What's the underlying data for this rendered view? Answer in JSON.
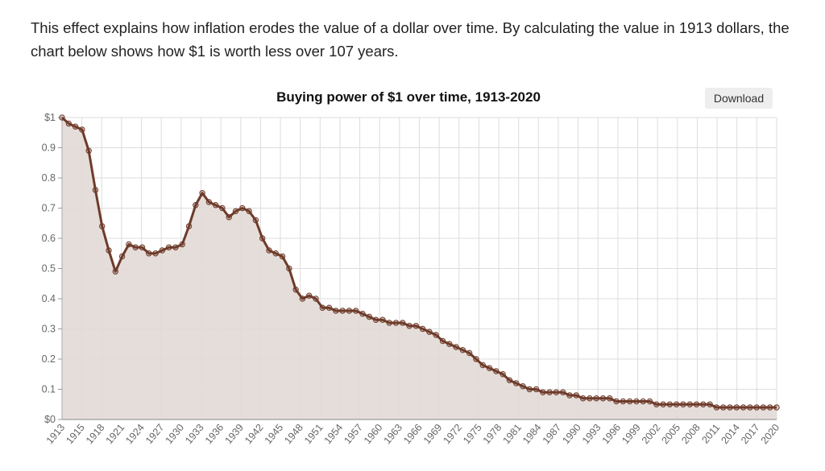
{
  "intro": "This effect explains how inflation erodes the value of a dollar over time. By calculating the value in 1913 dollars, the chart below shows how $1 is worth less over 107 years.",
  "download_label": "Download",
  "colors": {
    "line": "#6e3b2a",
    "fill": "#e2d9d5",
    "grid": "#dddddd"
  },
  "chart_data": {
    "type": "area",
    "title": "Buying power of $1 over time, 1913-2020",
    "xlabel": "",
    "ylabel": "",
    "ylim": [
      0,
      1
    ],
    "grid": true,
    "y_ticks": [
      {
        "value": 0,
        "label": "$0"
      },
      {
        "value": 0.1,
        "label": "0.1"
      },
      {
        "value": 0.2,
        "label": "0.2"
      },
      {
        "value": 0.3,
        "label": "0.3"
      },
      {
        "value": 0.4,
        "label": "0.4"
      },
      {
        "value": 0.5,
        "label": "0.5"
      },
      {
        "value": 0.6,
        "label": "0.6"
      },
      {
        "value": 0.7,
        "label": "0.7"
      },
      {
        "value": 0.8,
        "label": "0.8"
      },
      {
        "value": 0.9,
        "label": "0.9"
      },
      {
        "value": 1,
        "label": "$1"
      }
    ],
    "x_tick_labels": [
      "1913",
      "1915",
      "1918",
      "1921",
      "1924",
      "1927",
      "1930",
      "1933",
      "1936",
      "1939",
      "1942",
      "1945",
      "1948",
      "1951",
      "1954",
      "1957",
      "1960",
      "1963",
      "1966",
      "1969",
      "1972",
      "1975",
      "1978",
      "1981",
      "1984",
      "1987",
      "1990",
      "1993",
      "1996",
      "1999",
      "2002",
      "2005",
      "2008",
      "2011",
      "2014",
      "2017",
      "2020"
    ],
    "x_start": 1913,
    "values": [
      1.0,
      0.98,
      0.97,
      0.96,
      0.89,
      0.76,
      0.64,
      0.56,
      0.49,
      0.54,
      0.58,
      0.57,
      0.57,
      0.55,
      0.55,
      0.56,
      0.57,
      0.57,
      0.58,
      0.64,
      0.71,
      0.75,
      0.72,
      0.71,
      0.7,
      0.67,
      0.69,
      0.7,
      0.69,
      0.66,
      0.6,
      0.56,
      0.55,
      0.54,
      0.5,
      0.43,
      0.4,
      0.41,
      0.4,
      0.37,
      0.37,
      0.36,
      0.36,
      0.36,
      0.36,
      0.35,
      0.34,
      0.33,
      0.33,
      0.32,
      0.32,
      0.32,
      0.31,
      0.31,
      0.3,
      0.29,
      0.28,
      0.26,
      0.25,
      0.24,
      0.23,
      0.22,
      0.2,
      0.18,
      0.17,
      0.16,
      0.15,
      0.13,
      0.12,
      0.11,
      0.1,
      0.1,
      0.09,
      0.09,
      0.09,
      0.09,
      0.08,
      0.08,
      0.07,
      0.07,
      0.07,
      0.07,
      0.07,
      0.06,
      0.06,
      0.06,
      0.06,
      0.06,
      0.06,
      0.05,
      0.05,
      0.05,
      0.05,
      0.05,
      0.05,
      0.05,
      0.05,
      0.05,
      0.04,
      0.04,
      0.04,
      0.04,
      0.04,
      0.04,
      0.04,
      0.04,
      0.04,
      0.04
    ]
  }
}
